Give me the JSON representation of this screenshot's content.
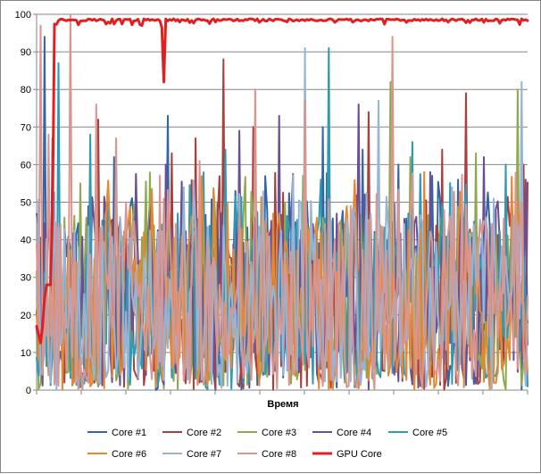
{
  "chart_data": {
    "type": "line",
    "title": "",
    "xlabel": "Время",
    "ylabel": "",
    "ylim": [
      0,
      100
    ],
    "yticks": [
      0,
      10,
      20,
      30,
      40,
      50,
      60,
      70,
      80,
      90,
      100
    ],
    "grid": {
      "horizontal": true,
      "vertical": false
    },
    "legend": "bottom",
    "n_points": 248,
    "series": [
      {
        "name": "Core #1",
        "color": "#3465a4",
        "width": 2,
        "seed": 11,
        "peaks": [
          [
            24,
            88
          ],
          [
            50,
            94
          ],
          [
            58,
            67
          ],
          [
            127,
            62
          ],
          [
            186,
            73
          ],
          [
            225,
            55
          ],
          [
            360,
            70
          ],
          [
            406,
            64
          ],
          [
            446,
            60
          ],
          [
            511,
            56
          ]
        ]
      },
      {
        "name": "Core #2",
        "color": "#a8403d",
        "width": 2,
        "seed": 23,
        "peaks": [
          [
            108,
            72
          ],
          [
            192,
            63
          ],
          [
            219,
            67
          ],
          [
            249,
            88
          ],
          [
            283,
            70
          ],
          [
            368,
            60
          ],
          [
            412,
            74
          ],
          [
            494,
            64
          ],
          [
            520,
            79
          ],
          [
            586,
            60
          ]
        ]
      },
      {
        "name": "Core #3",
        "color": "#8faa4e",
        "width": 2,
        "seed": 37,
        "peaks": [
          [
            50,
            39
          ],
          [
            88,
            55
          ],
          [
            227,
            58
          ],
          [
            338,
            57
          ],
          [
            436,
            82
          ],
          [
            458,
            62
          ],
          [
            532,
            63
          ],
          [
            578,
            80
          ]
        ]
      },
      {
        "name": "Core #4",
        "color": "#6b4f93",
        "width": 2,
        "seed": 41,
        "peaks": [
          [
            185,
            60
          ],
          [
            268,
            69
          ],
          [
            311,
            73
          ],
          [
            400,
            76
          ],
          [
            480,
            58
          ],
          [
            541,
            62
          ],
          [
            587,
            56
          ]
        ]
      },
      {
        "name": "Core #5",
        "color": "#2e9ab4",
        "width": 2,
        "seed": 53,
        "peaks": [
          [
            65,
            87
          ],
          [
            100,
            68
          ],
          [
            199,
            47
          ],
          [
            251,
            64
          ],
          [
            368,
            91
          ],
          [
            460,
            66
          ],
          [
            565,
            60
          ]
        ]
      },
      {
        "name": "Core #6",
        "color": "#e58832",
        "width": 2,
        "seed": 67,
        "peaks": [
          [
            186,
            30
          ],
          [
            199,
            26
          ],
          [
            282,
            33
          ],
          [
            474,
            58
          ],
          [
            508,
            36
          ]
        ]
      },
      {
        "name": "Core #7",
        "color": "#97b4d6",
        "width": 2,
        "seed": 79,
        "peaks": [
          [
            176,
            42
          ],
          [
            341,
            91
          ],
          [
            422,
            77
          ],
          [
            446,
            48
          ],
          [
            583,
            82
          ]
        ]
      },
      {
        "name": "Core #8",
        "color": "#d9958e",
        "width": 2,
        "seed": 83,
        "peaks": [
          [
            44,
            97
          ],
          [
            53,
            68
          ],
          [
            77,
            100
          ],
          [
            107,
            76
          ],
          [
            128,
            67
          ],
          [
            222,
            61
          ],
          [
            286,
            80
          ],
          [
            340,
            77
          ],
          [
            439,
            94
          ],
          [
            497,
            48
          ]
        ]
      },
      {
        "name": "GPU Core",
        "color": "#e02020",
        "width": 3,
        "seed": 97,
        "peaks": []
      }
    ]
  }
}
